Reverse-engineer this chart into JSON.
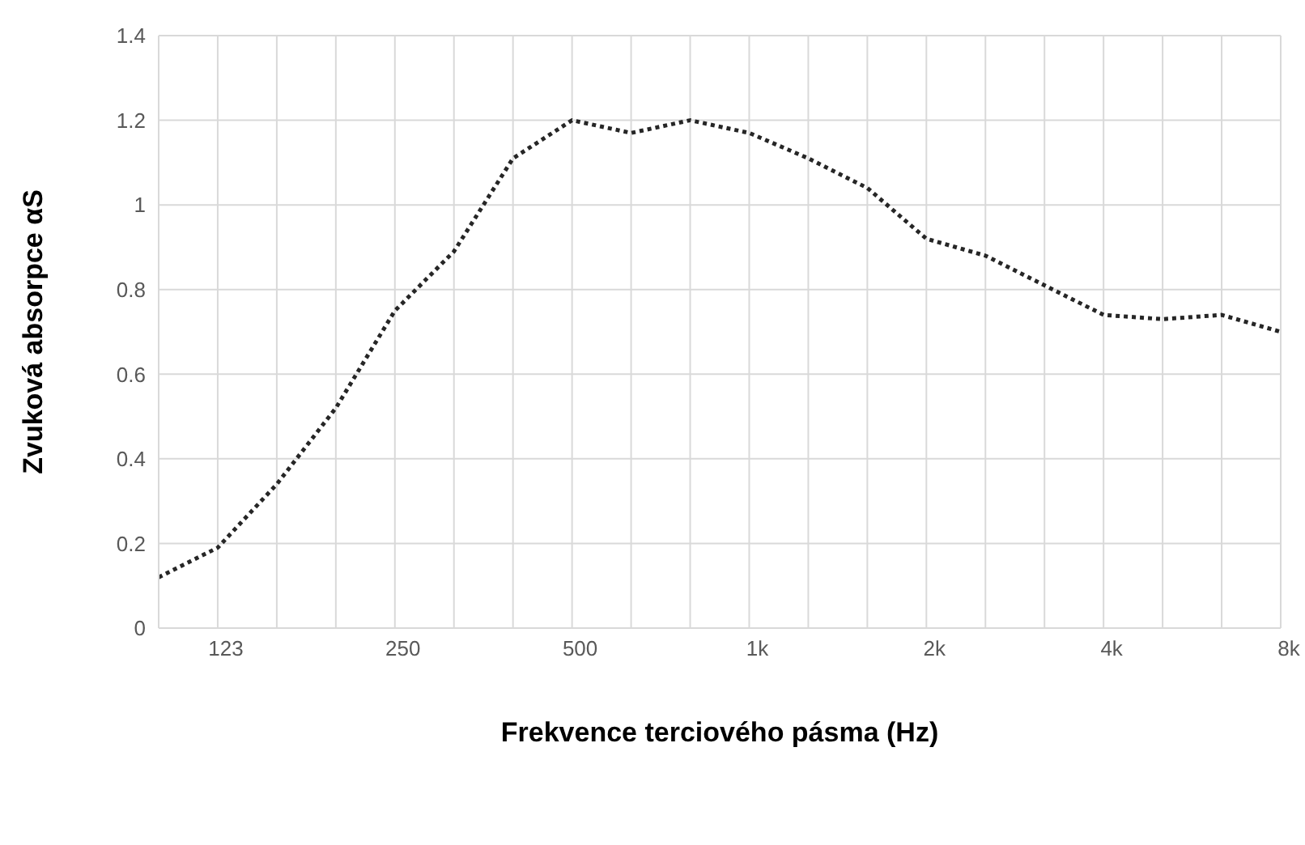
{
  "chart_data": {
    "type": "line",
    "xlabel": "Frekvence terciového pásma (Hz)",
    "ylabel": "Zvuková absorpce αS",
    "categories": [
      null,
      "123",
      null,
      null,
      "250",
      null,
      null,
      "500",
      null,
      null,
      "1k",
      null,
      null,
      "2k",
      null,
      null,
      "4k",
      null,
      null,
      "8k"
    ],
    "series": [
      {
        "color": "#262626",
        "values": [
          0.12,
          0.19,
          0.34,
          0.52,
          0.75,
          0.89,
          1.11,
          1.2,
          1.17,
          1.2,
          1.17,
          1.11,
          1.04,
          0.92,
          0.88,
          0.81,
          0.74,
          0.73,
          0.74,
          0.7
        ]
      }
    ],
    "ylim": [
      0,
      1.4
    ],
    "yticks": [
      0,
      0.2,
      0.4,
      0.6,
      0.8,
      1,
      1.2,
      1.4
    ],
    "grid": true,
    "marker": "none",
    "line_style": "dotted"
  }
}
